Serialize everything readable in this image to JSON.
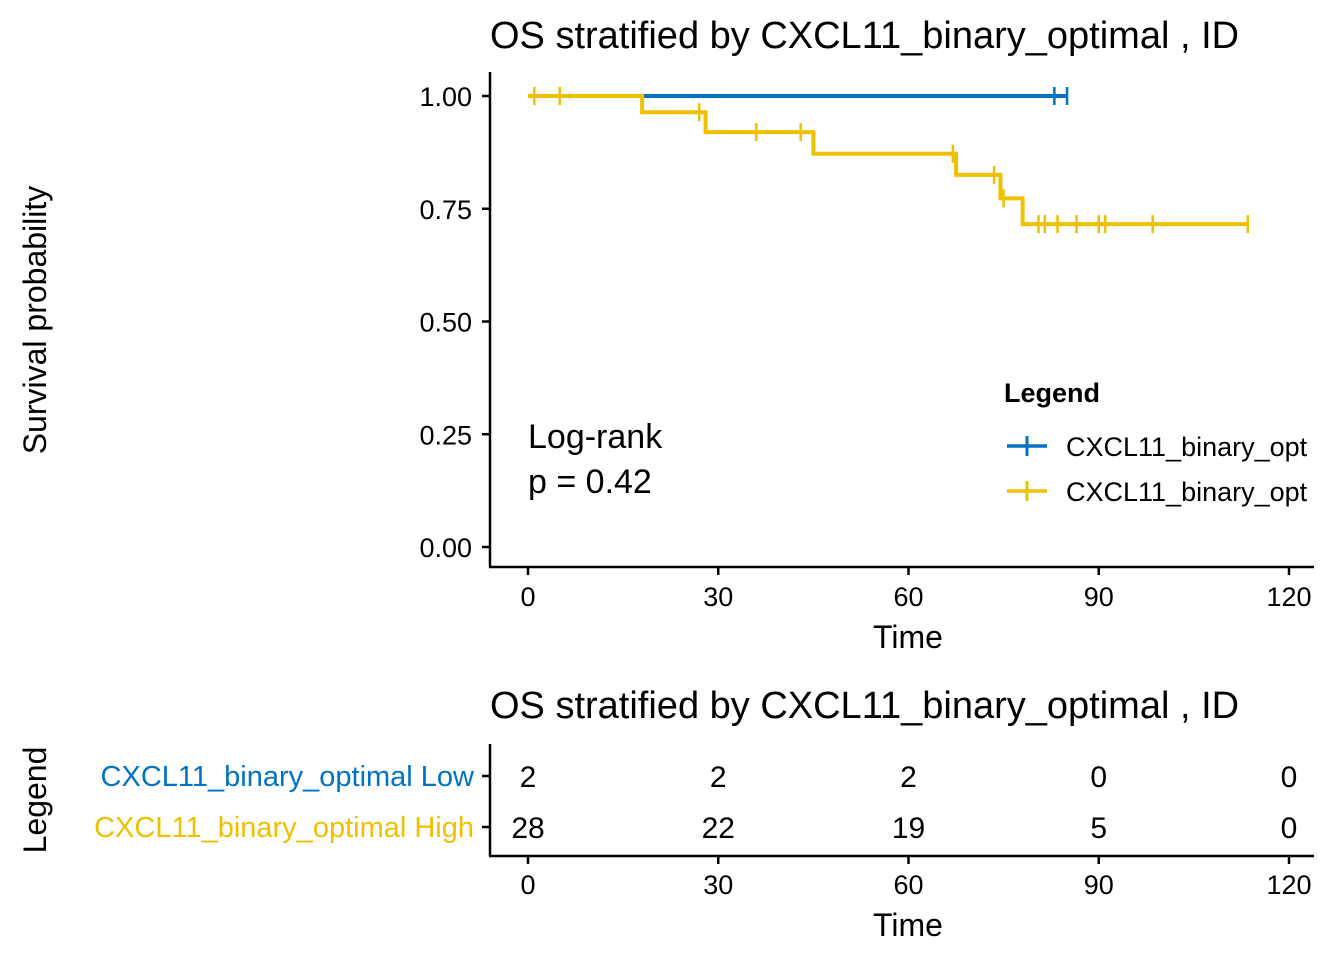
{
  "chart_data": [
    {
      "type": "line",
      "subtype": "kaplan-meier",
      "title": "OS stratified by CXCL11_binary_optimal , ID",
      "xlabel": "Time",
      "ylabel": "Survival probability",
      "xlim": [
        0,
        120
      ],
      "ylim": [
        0,
        1
      ],
      "xticks": [
        0,
        30,
        60,
        90,
        120
      ],
      "yticks": [
        "0.00",
        "0.25",
        "0.50",
        "0.75",
        "1.00"
      ],
      "grid": false,
      "legend": {
        "title": "Legend",
        "position": "right",
        "entries": [
          "CXCL11_binary_opt",
          "CXCL11_binary_opt"
        ]
      },
      "annotation": {
        "line1": "Log-rank",
        "line2": "p = 0.42"
      },
      "series": [
        {
          "name": "CXCL11_binary_optimal Low",
          "color": "#0073C2",
          "steps": [
            [
              0,
              1.0
            ],
            [
              85,
              1.0
            ]
          ],
          "censor_times": [
            83,
            85
          ]
        },
        {
          "name": "CXCL11_binary_optimal High",
          "color": "#EFC000",
          "steps": [
            [
              0,
              1.0
            ],
            [
              18,
              0.964
            ],
            [
              28,
              0.92
            ],
            [
              45,
              0.872
            ],
            [
              67.5,
              0.825
            ],
            [
              74.5,
              0.773
            ],
            [
              78,
              0.716
            ],
            [
              113.5,
              0.716
            ]
          ],
          "censor_times": [
            1,
            5,
            27,
            36,
            43,
            67,
            73.5,
            75,
            80.5,
            81.5,
            83.5,
            86.5,
            90,
            91,
            98.5,
            113.5
          ]
        }
      ]
    },
    {
      "type": "table",
      "subtype": "risk-table",
      "title": "OS stratified by CXCL11_binary_optimal , ID",
      "xlabel": "Time",
      "ylabel": "Legend",
      "xlim": [
        0,
        120
      ],
      "xticks": [
        0,
        30,
        60,
        90,
        120
      ],
      "strata": [
        {
          "label": "CXCL11_binary_optimal Low",
          "color": "#0073C2",
          "counts": [
            2,
            2,
            2,
            0,
            0
          ]
        },
        {
          "label": "CXCL11_binary_optimal High",
          "color": "#EFC000",
          "counts": [
            28,
            22,
            19,
            5,
            0
          ]
        }
      ]
    }
  ]
}
